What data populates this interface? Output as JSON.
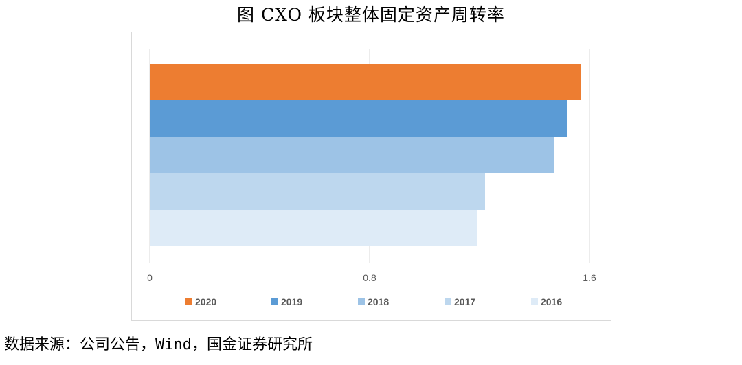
{
  "page": {
    "title": "图 CXO 板块整体固定资产周转率",
    "source": "数据来源：公司公告，Wind，国金证券研究所"
  },
  "chart_data": {
    "type": "bar",
    "orientation": "horizontal",
    "title": "",
    "xlim": [
      0,
      1.6
    ],
    "x_ticks": [
      "0",
      "0.8",
      "1.6"
    ],
    "grid": "vertical",
    "legend_position": "bottom",
    "series": [
      {
        "name": "2020",
        "value": 1.57,
        "color": "#ED7D31"
      },
      {
        "name": "2019",
        "value": 1.52,
        "color": "#5B9BD5"
      },
      {
        "name": "2018",
        "value": 1.47,
        "color": "#9DC3E6"
      },
      {
        "name": "2017",
        "value": 1.22,
        "color": "#BDD7EE"
      },
      {
        "name": "2016",
        "value": 1.19,
        "color": "#DEEBF7"
      }
    ]
  }
}
